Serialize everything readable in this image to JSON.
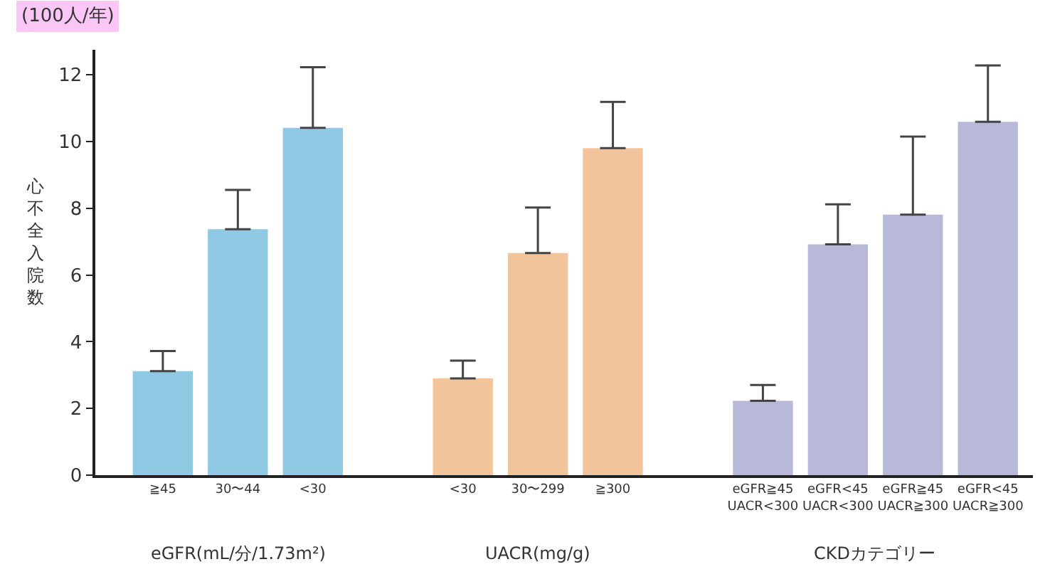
{
  "chart_data": {
    "type": "bar",
    "ylabel": "心不全入院数",
    "categories": [
      "≧45",
      "30〜44",
      "<30",
      null,
      "<30",
      "30〜299",
      "≧300",
      null,
      "eGFR≧45\nUACR<300",
      "eGFR<45\nUACR<300",
      "eGFR≧45\nUACR≧300",
      "eGFR<45\nUACR≧300"
    ],
    "values": [
      3.12,
      7.37,
      10.41,
      null,
      2.9,
      6.66,
      9.8,
      null,
      2.23,
      6.92,
      7.81,
      10.59
    ],
    "errors": [
      [
        3.12,
        3.72
      ],
      [
        7.37,
        8.55
      ],
      [
        10.41,
        12.23
      ],
      null,
      [
        2.9,
        3.43
      ],
      [
        6.66,
        8.02
      ],
      [
        9.8,
        11.19
      ],
      null,
      [
        2.23,
        2.7
      ],
      [
        6.92,
        8.12
      ],
      [
        7.81,
        10.15
      ],
      [
        10.59,
        12.28
      ]
    ],
    "colors": [
      "#8fc9e3",
      "#8fc9e3",
      "#8fc9e3",
      null,
      "#f2c49b",
      "#f2c49b",
      "#f2c49b",
      null,
      "#b8b9d9",
      "#b8b9d9",
      "#b8b9d9",
      "#b8b9d9"
    ],
    "ylim": [
      0,
      12.75
    ],
    "yticks": [
      0,
      2,
      4,
      6,
      8,
      10,
      12
    ],
    "legend": false,
    "annotations": [
      "(100人/年)",
      "eGFR(mL/分/1.73m²)",
      "UACR(mg/g)",
      "CKDカテゴリー"
    ]
  }
}
